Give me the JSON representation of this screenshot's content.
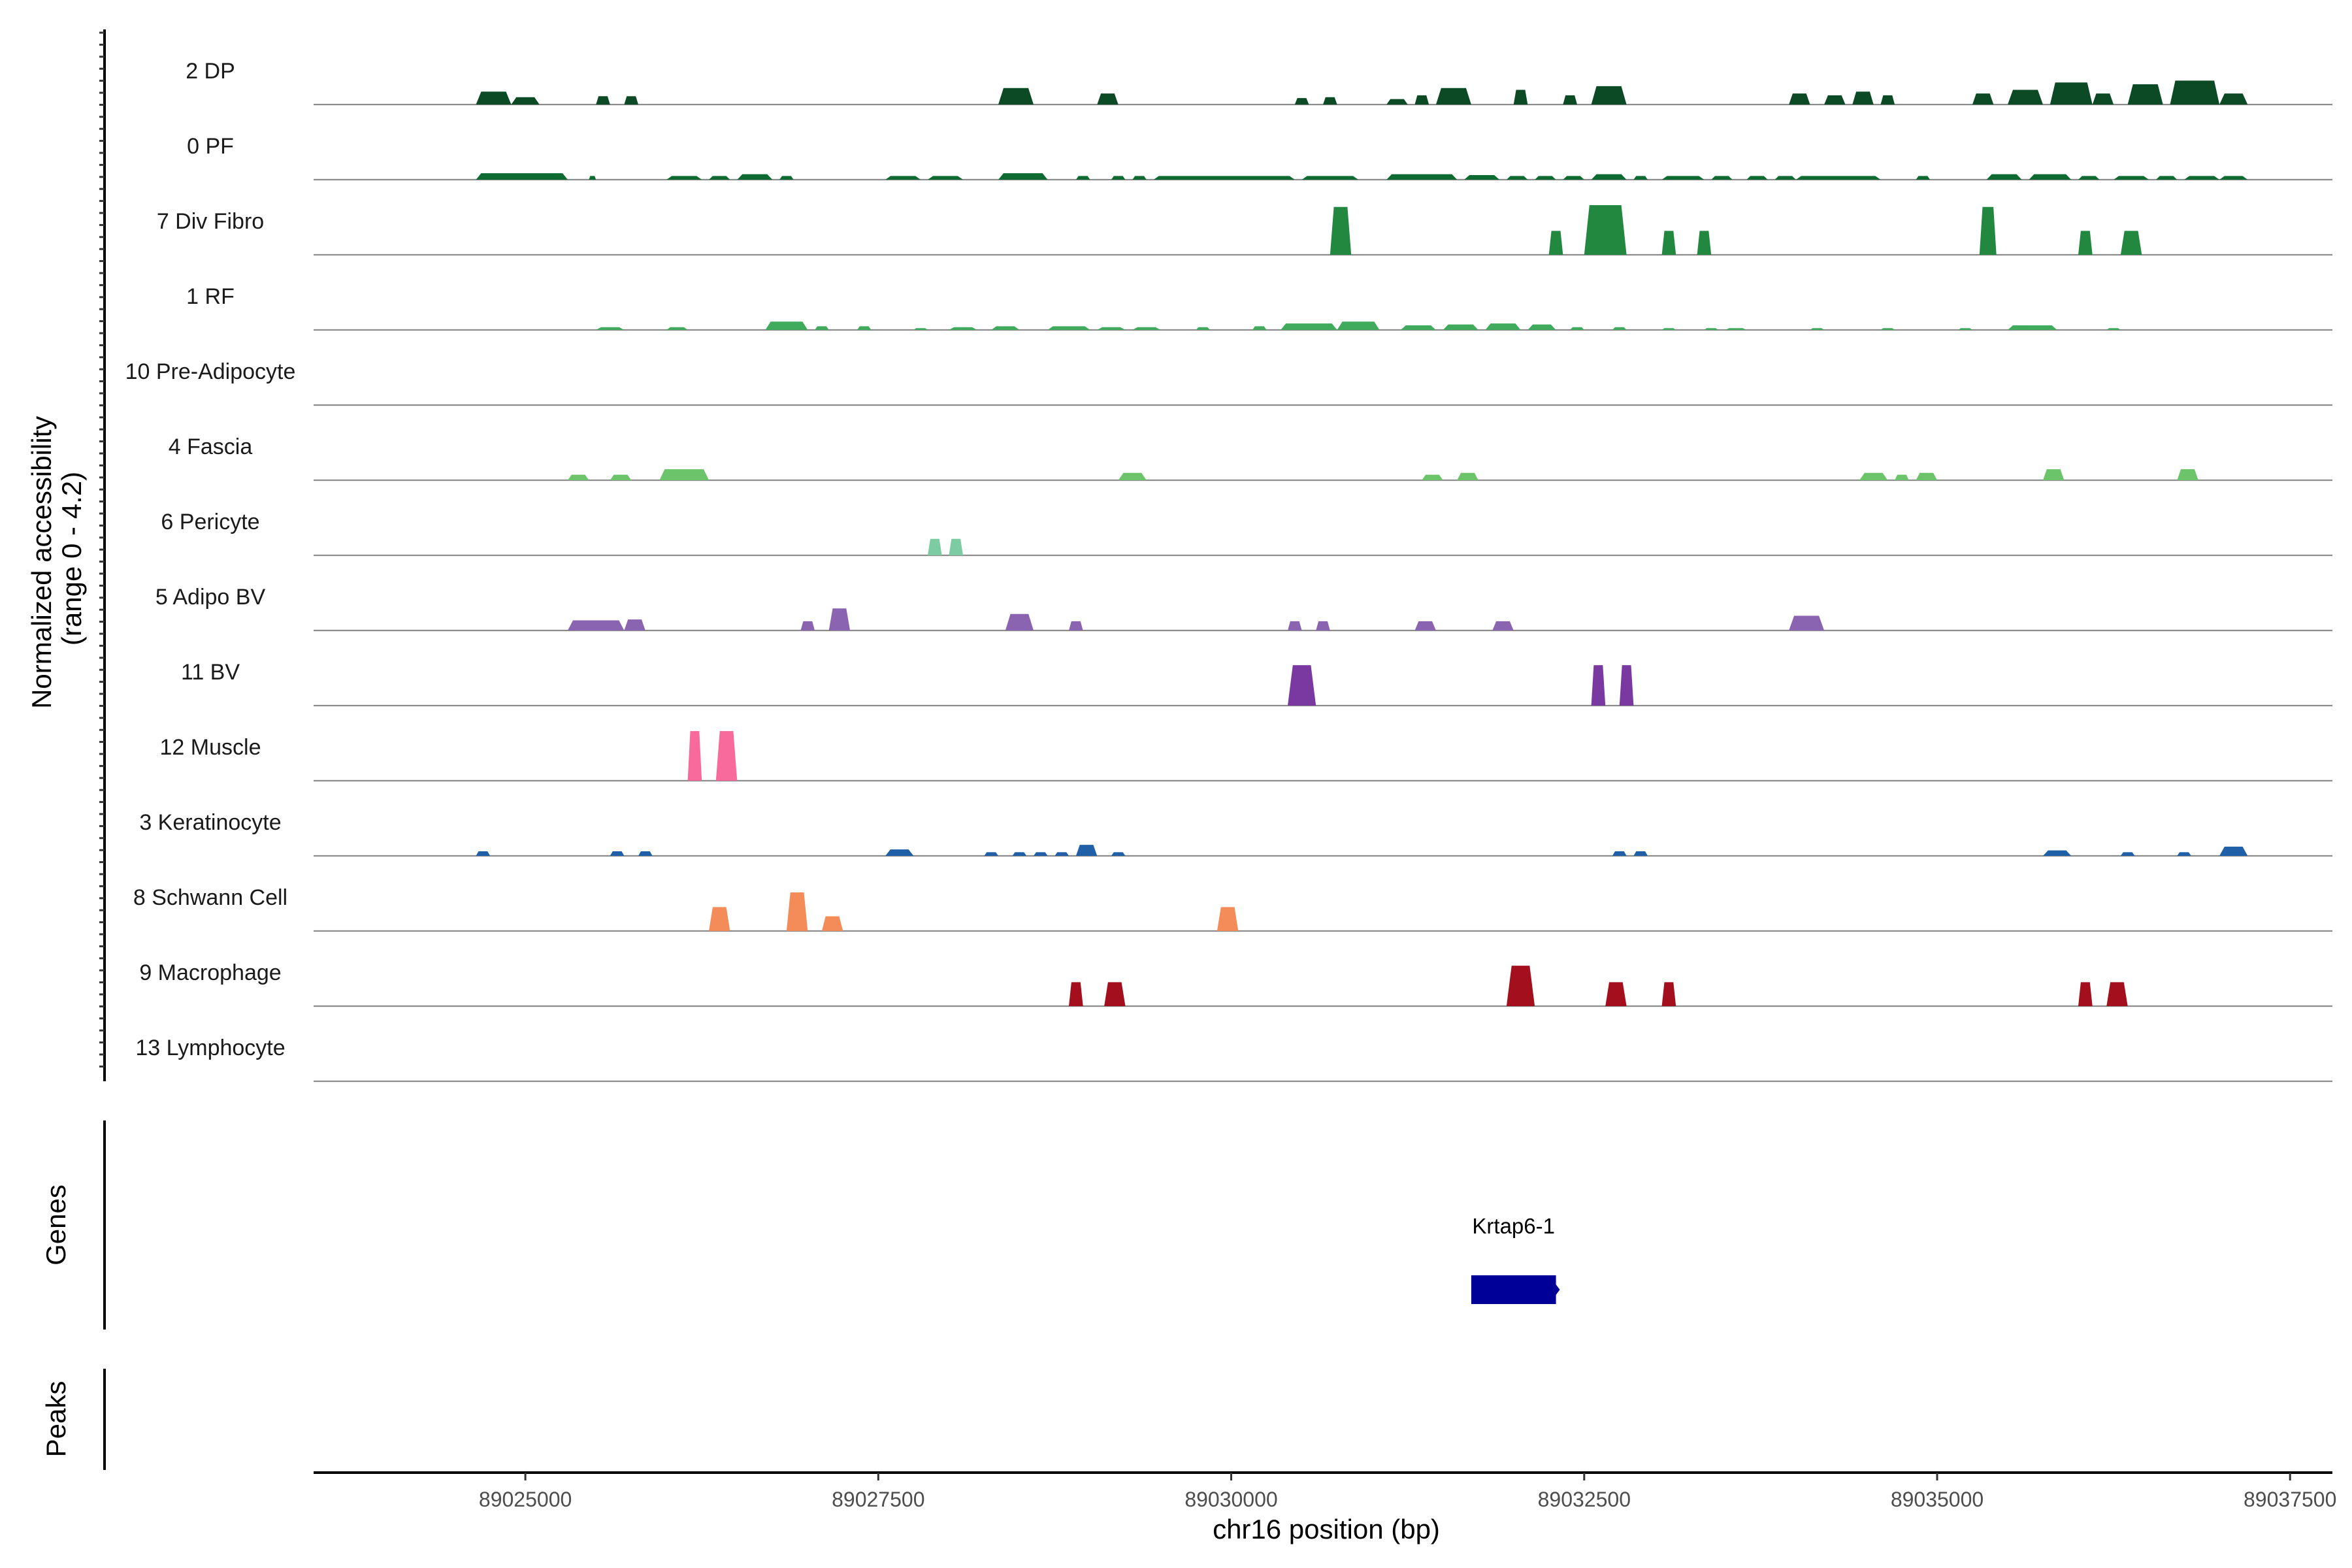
{
  "chart_data": {
    "type": "area",
    "title": "",
    "chromosome": "chr16",
    "xlabel": "chr16 position (bp)",
    "ylabel": "Normalized accessibility\n(range 0 - 4.2)",
    "y_range": [
      0,
      4.2
    ],
    "xlim": [
      89023500,
      89037800
    ],
    "x_ticks": [
      89025000,
      89027500,
      89030000,
      89032500,
      89035000,
      89037500
    ],
    "x_tick_labels": [
      "89025000",
      "89027500",
      "89030000",
      "89032500",
      "89035000",
      "89037500"
    ],
    "panel_labels": {
      "genes": "Genes",
      "peaks": "Peaks"
    },
    "genes": [
      {
        "name": "Krtap6-1",
        "start": 89031700,
        "end": 89032300,
        "strand": "+",
        "color": "#000099"
      }
    ],
    "peaks": [],
    "tracks": [
      {
        "label": "2 DP",
        "color": "#0b4a25",
        "peaks": [
          [
            89024650,
            89024900,
            0.7
          ],
          [
            89024900,
            89025100,
            0.4
          ],
          [
            89025500,
            89025600,
            0.45
          ],
          [
            89025700,
            89025800,
            0.45
          ],
          [
            89028350,
            89028600,
            0.9
          ],
          [
            89029050,
            89029200,
            0.6
          ],
          [
            89030450,
            89030550,
            0.35
          ],
          [
            89030650,
            89030750,
            0.4
          ],
          [
            89031100,
            89031250,
            0.3
          ],
          [
            89031300,
            89031400,
            0.5
          ],
          [
            89031450,
            89031700,
            0.9
          ],
          [
            89032000,
            89032100,
            0.8
          ],
          [
            89032350,
            89032450,
            0.5
          ],
          [
            89032550,
            89032800,
            1.0
          ],
          [
            89033950,
            89034100,
            0.6
          ],
          [
            89034200,
            89034350,
            0.5
          ],
          [
            89034400,
            89034550,
            0.7
          ],
          [
            89034600,
            89034700,
            0.5
          ],
          [
            89035250,
            89035400,
            0.6
          ],
          [
            89035500,
            89035750,
            0.8
          ],
          [
            89035800,
            89036100,
            1.2
          ],
          [
            89036100,
            89036250,
            0.6
          ],
          [
            89036350,
            89036600,
            1.1
          ],
          [
            89036650,
            89037000,
            1.3
          ],
          [
            89037000,
            89037200,
            0.6
          ]
        ]
      },
      {
        "label": "0 PF",
        "color": "#0d6b31",
        "peaks": [
          [
            89024650,
            89025300,
            0.35
          ],
          [
            89025450,
            89025500,
            0.2
          ],
          [
            89026000,
            89026250,
            0.2
          ],
          [
            89026300,
            89026450,
            0.2
          ],
          [
            89026500,
            89026750,
            0.3
          ],
          [
            89026800,
            89026900,
            0.2
          ],
          [
            89027550,
            89027800,
            0.2
          ],
          [
            89027850,
            89028100,
            0.2
          ],
          [
            89028350,
            89028700,
            0.35
          ],
          [
            89028900,
            89029000,
            0.2
          ],
          [
            89029150,
            89029250,
            0.2
          ],
          [
            89029300,
            89029400,
            0.2
          ],
          [
            89029450,
            89030450,
            0.2
          ],
          [
            89030500,
            89030900,
            0.2
          ],
          [
            89031100,
            89031600,
            0.3
          ],
          [
            89031650,
            89031900,
            0.25
          ],
          [
            89031950,
            89032100,
            0.2
          ],
          [
            89032150,
            89032300,
            0.2
          ],
          [
            89032350,
            89032500,
            0.2
          ],
          [
            89032550,
            89032800,
            0.3
          ],
          [
            89032850,
            89032950,
            0.2
          ],
          [
            89033050,
            89033350,
            0.2
          ],
          [
            89033400,
            89033550,
            0.2
          ],
          [
            89033650,
            89033800,
            0.2
          ],
          [
            89033850,
            89034000,
            0.2
          ],
          [
            89034000,
            89034600,
            0.2
          ],
          [
            89034850,
            89034950,
            0.2
          ],
          [
            89035350,
            89035600,
            0.3
          ],
          [
            89035650,
            89035950,
            0.3
          ],
          [
            89036000,
            89036150,
            0.2
          ],
          [
            89036250,
            89036500,
            0.2
          ],
          [
            89036550,
            89036700,
            0.2
          ],
          [
            89036750,
            89037000,
            0.2
          ],
          [
            89037000,
            89037200,
            0.2
          ]
        ]
      },
      {
        "label": "7 Div Fibro",
        "color": "#22883f",
        "peaks": [
          [
            89030700,
            89030850,
            2.6
          ],
          [
            89032250,
            89032350,
            1.3
          ],
          [
            89032500,
            89032800,
            2.7
          ],
          [
            89033050,
            89033150,
            1.3
          ],
          [
            89033300,
            89033400,
            1.3
          ],
          [
            89035300,
            89035420,
            2.6
          ],
          [
            89036000,
            89036100,
            1.3
          ],
          [
            89036300,
            89036450,
            1.3
          ]
        ]
      },
      {
        "label": "1 RF",
        "color": "#41ab5d",
        "peaks": [
          [
            89025500,
            89025700,
            0.15
          ],
          [
            89026000,
            89026150,
            0.15
          ],
          [
            89026700,
            89027000,
            0.45
          ],
          [
            89027050,
            89027150,
            0.2
          ],
          [
            89027350,
            89027450,
            0.2
          ],
          [
            89027750,
            89027850,
            0.1
          ],
          [
            89028000,
            89028200,
            0.15
          ],
          [
            89028300,
            89028500,
            0.2
          ],
          [
            89028700,
            89029000,
            0.2
          ],
          [
            89029050,
            89029250,
            0.15
          ],
          [
            89029300,
            89029500,
            0.15
          ],
          [
            89029750,
            89029850,
            0.15
          ],
          [
            89030150,
            89030250,
            0.2
          ],
          [
            89030350,
            89030750,
            0.35
          ],
          [
            89030750,
            89031050,
            0.45
          ],
          [
            89031200,
            89031450,
            0.25
          ],
          [
            89031500,
            89031750,
            0.3
          ],
          [
            89031800,
            89032050,
            0.35
          ],
          [
            89032100,
            89032300,
            0.3
          ],
          [
            89032400,
            89032500,
            0.15
          ],
          [
            89032700,
            89032800,
            0.15
          ],
          [
            89033050,
            89033150,
            0.1
          ],
          [
            89033350,
            89033450,
            0.1
          ],
          [
            89033500,
            89033650,
            0.1
          ],
          [
            89034100,
            89034200,
            0.1
          ],
          [
            89034600,
            89034700,
            0.1
          ],
          [
            89035150,
            89035250,
            0.1
          ],
          [
            89035500,
            89035850,
            0.25
          ],
          [
            89036200,
            89036300,
            0.1
          ]
        ]
      },
      {
        "label": "10 Pre-Adipocyte",
        "color": "#74c476",
        "peaks": []
      },
      {
        "label": "4 Fascia",
        "color": "#6cc46a",
        "peaks": [
          [
            89025300,
            89025450,
            0.3
          ],
          [
            89025600,
            89025750,
            0.3
          ],
          [
            89025950,
            89026300,
            0.6
          ],
          [
            89029200,
            89029400,
            0.4
          ],
          [
            89031350,
            89031500,
            0.3
          ],
          [
            89031600,
            89031750,
            0.4
          ],
          [
            89034450,
            89034650,
            0.4
          ],
          [
            89034700,
            89034800,
            0.3
          ],
          [
            89034850,
            89035000,
            0.4
          ],
          [
            89035750,
            89035900,
            0.6
          ],
          [
            89036700,
            89036850,
            0.6
          ]
        ]
      },
      {
        "label": "6 Pericyte",
        "color": "#7ccba2",
        "peaks": [
          [
            89027850,
            89027950,
            0.9
          ],
          [
            89028000,
            89028100,
            0.9
          ]
        ]
      },
      {
        "label": "5 Adipo BV",
        "color": "#8b64b1",
        "peaks": [
          [
            89025300,
            89025700,
            0.55
          ],
          [
            89025700,
            89025850,
            0.6
          ],
          [
            89026950,
            89027050,
            0.5
          ],
          [
            89027150,
            89027300,
            1.2
          ],
          [
            89028400,
            89028600,
            0.9
          ],
          [
            89028850,
            89028950,
            0.5
          ],
          [
            89030400,
            89030500,
            0.5
          ],
          [
            89030600,
            89030700,
            0.5
          ],
          [
            89031300,
            89031450,
            0.5
          ],
          [
            89031850,
            89032000,
            0.5
          ],
          [
            89033950,
            89034200,
            0.8
          ]
        ]
      },
      {
        "label": "11 BV",
        "color": "#7a39a0",
        "peaks": [
          [
            89030400,
            89030600,
            2.2
          ],
          [
            89032550,
            89032650,
            2.2
          ],
          [
            89032750,
            89032850,
            2.2
          ]
        ]
      },
      {
        "label": "12 Muscle",
        "color": "#f76a9b",
        "peaks": [
          [
            89026150,
            89026250,
            2.7
          ],
          [
            89026350,
            89026500,
            2.7
          ]
        ]
      },
      {
        "label": "3 Keratinocyte",
        "color": "#2060a8",
        "peaks": [
          [
            89024650,
            89024750,
            0.25
          ],
          [
            89025600,
            89025700,
            0.25
          ],
          [
            89025800,
            89025900,
            0.25
          ],
          [
            89027550,
            89027750,
            0.35
          ],
          [
            89028250,
            89028350,
            0.2
          ],
          [
            89028450,
            89028550,
            0.2
          ],
          [
            89028600,
            89028700,
            0.2
          ],
          [
            89028750,
            89028850,
            0.2
          ],
          [
            89028900,
            89029050,
            0.6
          ],
          [
            89029150,
            89029250,
            0.2
          ],
          [
            89032700,
            89032800,
            0.25
          ],
          [
            89032850,
            89032950,
            0.25
          ],
          [
            89035750,
            89035950,
            0.3
          ],
          [
            89036300,
            89036400,
            0.2
          ],
          [
            89036700,
            89036800,
            0.2
          ],
          [
            89037000,
            89037200,
            0.5
          ]
        ]
      },
      {
        "label": "8 Schwann Cell",
        "color": "#f48c5a",
        "peaks": [
          [
            89026300,
            89026450,
            1.3
          ],
          [
            89026850,
            89027000,
            2.1
          ],
          [
            89027100,
            89027250,
            0.8
          ],
          [
            89029900,
            89030050,
            1.3
          ]
        ]
      },
      {
        "label": "9 Macrophage",
        "color": "#a30f1c",
        "peaks": [
          [
            89028850,
            89028950,
            1.3
          ],
          [
            89029100,
            89029250,
            1.3
          ],
          [
            89031950,
            89032150,
            2.2
          ],
          [
            89032650,
            89032800,
            1.3
          ],
          [
            89033050,
            89033150,
            1.3
          ],
          [
            89036000,
            89036100,
            1.3
          ],
          [
            89036200,
            89036350,
            1.3
          ]
        ]
      },
      {
        "label": "13 Lymphocyte",
        "color": "#e6550d",
        "peaks": []
      }
    ]
  }
}
